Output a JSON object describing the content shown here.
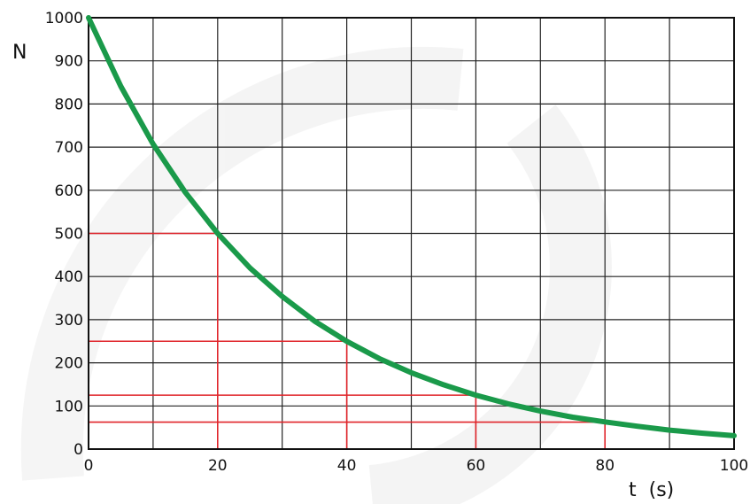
{
  "chart_data": {
    "type": "line",
    "title": "",
    "ylabel": "N",
    "xlabel": "t  (s)",
    "xlim": [
      0,
      100
    ],
    "ylim": [
      0,
      1000
    ],
    "x_ticks": [
      "0",
      "20",
      "40",
      "60",
      "80",
      "100"
    ],
    "x_tick_values": [
      0,
      20,
      40,
      60,
      80,
      100
    ],
    "y_ticks": [
      "0",
      "100",
      "200",
      "300",
      "400",
      "500",
      "600",
      "700",
      "800",
      "900",
      "1000"
    ],
    "y_tick_values": [
      0,
      100,
      200,
      300,
      400,
      500,
      600,
      700,
      800,
      900,
      1000
    ],
    "grid": true,
    "grid_step_x": 10,
    "grid_step_y": 100,
    "series": [
      {
        "color": "#1a9a4a",
        "x": [
          0,
          5,
          10,
          15,
          20,
          25,
          30,
          35,
          40,
          45,
          50,
          55,
          60,
          65,
          70,
          75,
          80,
          85,
          90,
          95,
          100
        ],
        "y": [
          1000,
          841,
          707,
          595,
          500,
          420,
          354,
          297,
          250,
          210,
          177,
          149,
          125,
          105,
          88,
          74,
          63,
          53,
          44,
          37,
          31
        ]
      }
    ],
    "guides": {
      "color": "#e0242a",
      "points": [
        {
          "x": 20,
          "y": 500
        },
        {
          "x": 40,
          "y": 250
        },
        {
          "x": 60,
          "y": 125
        },
        {
          "x": 80,
          "y": 62.5
        }
      ]
    }
  }
}
